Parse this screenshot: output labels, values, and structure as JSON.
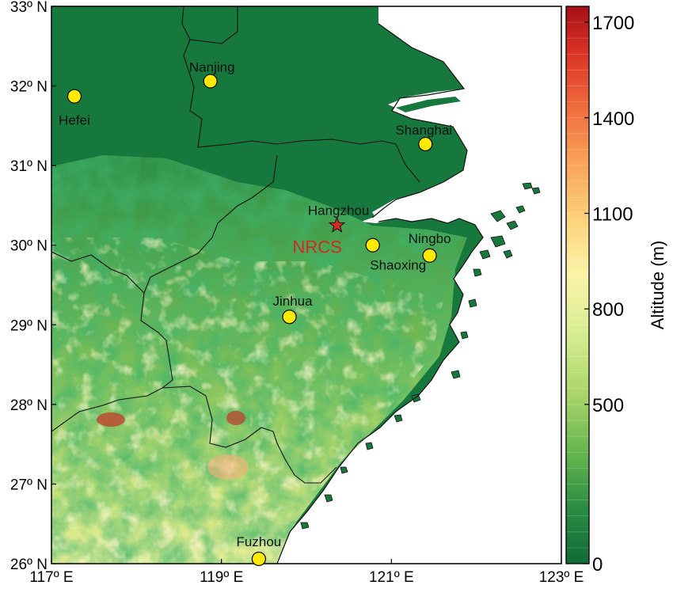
{
  "map": {
    "lon_range": [
      117,
      123
    ],
    "lat_range": [
      26,
      33
    ],
    "lon_ticks": [
      {
        "value": 117,
        "label": "117º E"
      },
      {
        "value": 119,
        "label": "119º E"
      },
      {
        "value": 121,
        "label": "121º E"
      },
      {
        "value": 123,
        "label": "123º E"
      }
    ],
    "lat_ticks": [
      {
        "value": 26,
        "label": "26º N"
      },
      {
        "value": 27,
        "label": "27º N"
      },
      {
        "value": 28,
        "label": "28º N"
      },
      {
        "value": 29,
        "label": "29º N"
      },
      {
        "value": 30,
        "label": "30º N"
      },
      {
        "value": 31,
        "label": "31º N"
      },
      {
        "value": 32,
        "label": "32º N"
      },
      {
        "value": 33,
        "label": "33º N"
      }
    ],
    "cities": [
      {
        "name": "Hefei",
        "lon": 117.27,
        "lat": 31.87
      },
      {
        "name": "Nanjing",
        "lon": 118.87,
        "lat": 32.06
      },
      {
        "name": "Shanghai",
        "lon": 121.4,
        "lat": 31.27
      },
      {
        "name": "Hangzhou",
        "lon": 120.36,
        "lat": 30.25
      },
      {
        "name": "Shaoxing",
        "lon": 120.78,
        "lat": 30.0
      },
      {
        "name": "Ningbo",
        "lon": 121.45,
        "lat": 29.87
      },
      {
        "name": "Jinhua",
        "lon": 119.8,
        "lat": 29.1
      },
      {
        "name": "Fuzhou",
        "lon": 119.44,
        "lat": 26.06
      }
    ],
    "station": {
      "name": "NRCS",
      "lon": 120.36,
      "lat": 30.25,
      "marker": "star-icon",
      "color": "#d32a1e"
    },
    "colors": {
      "sea": "#ffffff",
      "lowland": "#17783e",
      "border": "#111111"
    }
  },
  "colorbar": {
    "title": "Altitude (m)",
    "min": 0,
    "max": 1750,
    "ticks": [
      {
        "value": 0,
        "label": "0"
      },
      {
        "value": 500,
        "label": "500"
      },
      {
        "value": 800,
        "label": "800"
      },
      {
        "value": 1100,
        "label": "1100"
      },
      {
        "value": 1400,
        "label": "1400"
      },
      {
        "value": 1700,
        "label": "1700"
      }
    ],
    "colors": [
      "#106b37",
      "#2b8d43",
      "#66b64f",
      "#a7d468",
      "#dbee94",
      "#fbf3a6",
      "#fdd17a",
      "#f9a25a",
      "#ef6b3d",
      "#d93025",
      "#a50f15"
    ]
  }
}
